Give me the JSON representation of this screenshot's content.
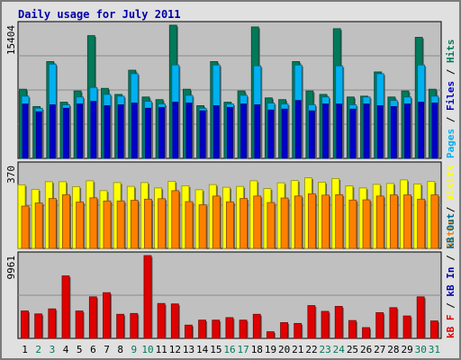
{
  "title": "Daily usage for July 2011",
  "colors": {
    "frame_bg": "#e0e0e0",
    "plot_bg": "#c0c0c0",
    "title": "#0000aa",
    "hits": "#007a5a",
    "files": "#00b0f0",
    "pages": "#0000cc",
    "visits": "#ffff00",
    "sites": "#ff8000",
    "kb_in": "#0000aa",
    "kb_out": "#006a8a",
    "kb_f": "#e00000",
    "weekday": "#000000",
    "weekend": "#007a5a"
  },
  "chart_data": [
    {
      "name": "hits-files-pages",
      "type": "bar",
      "ytick": "15404",
      "ylim": [
        0,
        15404
      ],
      "legend": [
        "Pages",
        "Files",
        "Hits"
      ],
      "categories": [
        "1",
        "2",
        "3",
        "4",
        "5",
        "6",
        "7",
        "8",
        "9",
        "10",
        "11",
        "12",
        "13",
        "14",
        "15",
        "16",
        "17",
        "18",
        "19",
        "20",
        "21",
        "22",
        "23",
        "24",
        "25",
        "26",
        "27",
        "28",
        "29",
        "30",
        "31"
      ],
      "series": [
        {
          "name": "Hits",
          "values": [
            8000,
            6000,
            11200,
            6500,
            7800,
            14200,
            8100,
            7400,
            10200,
            7100,
            6800,
            15404,
            8000,
            6100,
            11200,
            6500,
            7800,
            15200,
            7000,
            6800,
            11200,
            7800,
            7400,
            15000,
            7100,
            7200,
            10000,
            7100,
            7800,
            14000,
            8000
          ]
        },
        {
          "name": "Files",
          "values": [
            7200,
            5800,
            10900,
            6200,
            7100,
            8200,
            7400,
            7200,
            9800,
            6600,
            6300,
            10800,
            7300,
            5800,
            10800,
            6300,
            7300,
            10700,
            6400,
            6300,
            10800,
            6200,
            7100,
            10700,
            6200,
            7100,
            9800,
            6700,
            7100,
            10800,
            7200
          ]
        },
        {
          "name": "Pages",
          "values": [
            6300,
            5400,
            6200,
            5800,
            6300,
            6600,
            6100,
            6200,
            6400,
            5800,
            5900,
            6500,
            6400,
            5500,
            6100,
            5900,
            6300,
            6200,
            5600,
            5700,
            6700,
            5500,
            6300,
            6300,
            5700,
            6300,
            6100,
            6000,
            6300,
            6500,
            6400
          ]
        }
      ]
    },
    {
      "name": "visits-sites",
      "type": "bar",
      "ytick": "370",
      "ylim": [
        0,
        370
      ],
      "legend": [
        "Sites",
        "Visits"
      ],
      "categories": [
        "1",
        "2",
        "3",
        "4",
        "5",
        "6",
        "7",
        "8",
        "9",
        "10",
        "11",
        "12",
        "13",
        "14",
        "15",
        "16",
        "17",
        "18",
        "19",
        "20",
        "21",
        "22",
        "23",
        "24",
        "25",
        "26",
        "27",
        "28",
        "29",
        "30",
        "31"
      ],
      "series": [
        {
          "name": "Visits",
          "values": [
            284,
            264,
            298,
            298,
            276,
            302,
            258,
            294,
            277,
            294,
            270,
            300,
            280,
            262,
            285,
            273,
            277,
            302,
            267,
            293,
            303,
            315,
            296,
            312,
            279,
            270,
            286,
            290,
            306,
            288,
            299
          ]
        },
        {
          "name": "Sites",
          "values": [
            189,
            203,
            223,
            240,
            207,
            226,
            212,
            212,
            215,
            220,
            222,
            258,
            209,
            195,
            234,
            208,
            223,
            234,
            205,
            225,
            234,
            244,
            238,
            240,
            216,
            217,
            234,
            239,
            239,
            220,
            239
          ]
        }
      ]
    },
    {
      "name": "kbytes",
      "type": "bar",
      "ytick": "9961",
      "ylim": [
        0,
        9961
      ],
      "legend": [
        "kB F",
        "kB In",
        "kB Out"
      ],
      "categories": [
        "1",
        "2",
        "3",
        "4",
        "5",
        "6",
        "7",
        "8",
        "9",
        "10",
        "11",
        "12",
        "13",
        "14",
        "15",
        "16",
        "17",
        "18",
        "19",
        "20",
        "21",
        "22",
        "23",
        "24",
        "25",
        "26",
        "27",
        "28",
        "29",
        "30",
        "31"
      ],
      "series": [
        {
          "name": "kB F",
          "values": [
            3300,
            2950,
            3550,
            7520,
            3300,
            5000,
            5500,
            2900,
            3000,
            9961,
            4200,
            4150,
            1600,
            2200,
            2200,
            2500,
            2200,
            2900,
            800,
            1900,
            1800,
            3950,
            3250,
            3850,
            2150,
            1300,
            3100,
            3700,
            2700,
            5000,
            2100
          ]
        }
      ]
    }
  ],
  "axis_day_colors": [
    "weekday",
    "weekend",
    "weekend",
    "weekday",
    "weekday",
    "weekday",
    "weekday",
    "weekday",
    "weekend",
    "weekend",
    "weekday",
    "weekday",
    "weekday",
    "weekday",
    "weekday",
    "weekend",
    "weekend",
    "weekday",
    "weekday",
    "weekday",
    "weekday",
    "weekday",
    "weekend",
    "weekend",
    "weekday",
    "weekday",
    "weekday",
    "weekday",
    "weekday",
    "weekend",
    "weekend"
  ]
}
